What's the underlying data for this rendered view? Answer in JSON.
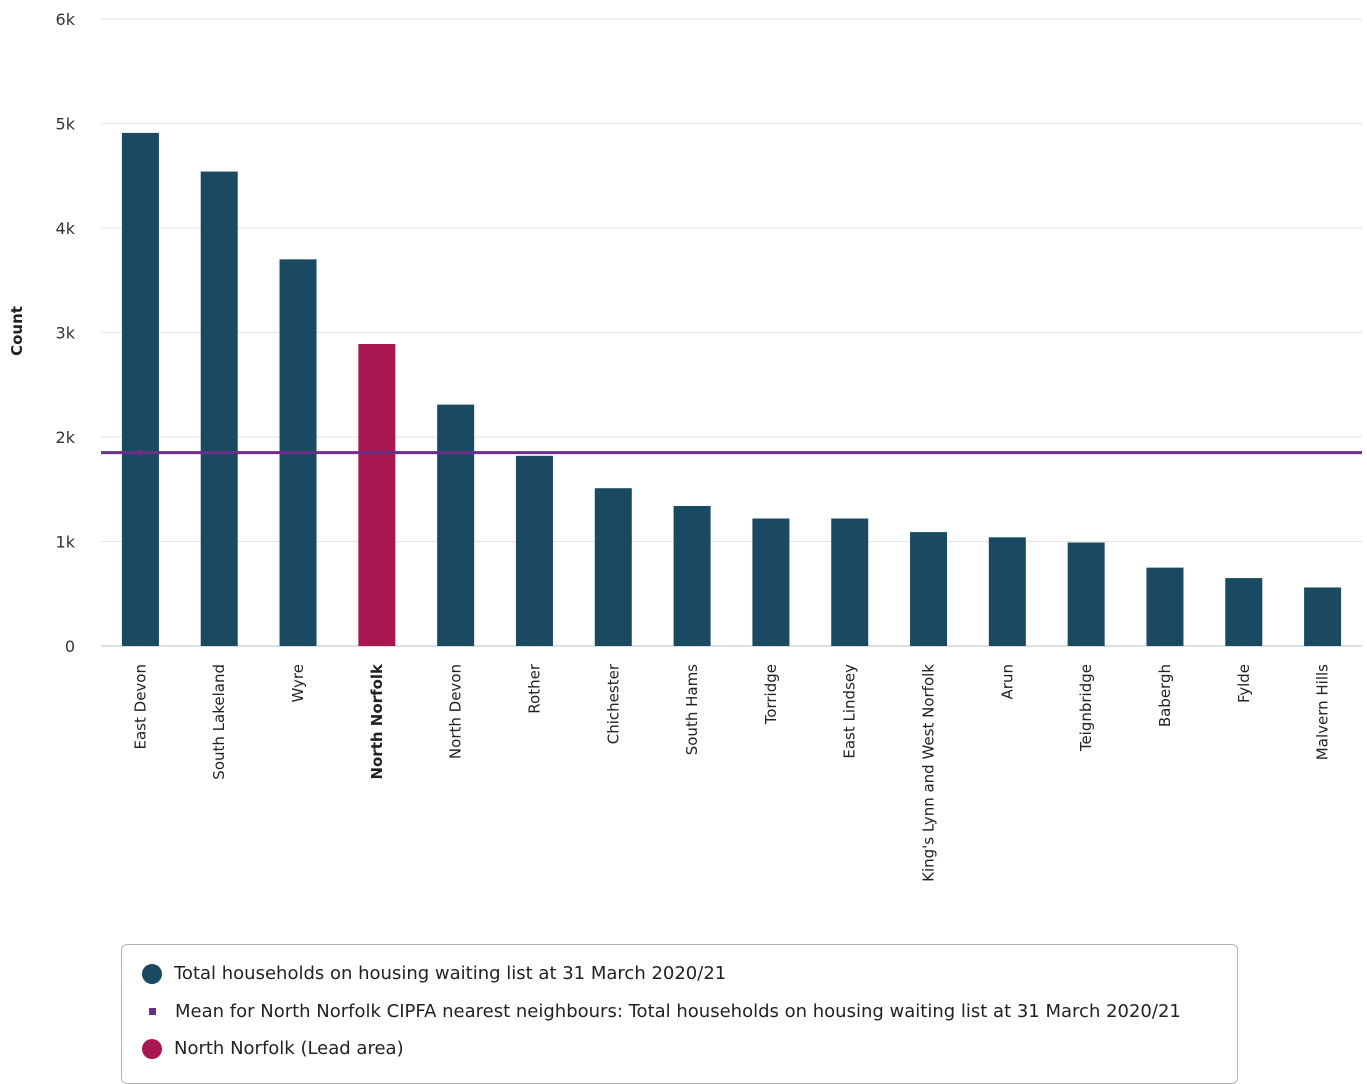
{
  "colors": {
    "bar": "#194a62",
    "lead_bar": "#a8174f",
    "mean_line": "#6c2f87",
    "grid": "#e3e3e3"
  },
  "chart_data": {
    "type": "bar",
    "ylabel": "Count",
    "xlabel": "",
    "ylim": [
      0,
      6000
    ],
    "yticks": [
      0,
      1000,
      2000,
      3000,
      4000,
      5000,
      6000
    ],
    "ytick_labels": [
      "0",
      "1k",
      "2k",
      "3k",
      "4k",
      "5k",
      "6k"
    ],
    "grid": true,
    "lead_category": "North Norfolk",
    "categories": [
      "East Devon",
      "South Lakeland",
      "Wyre",
      "North Norfolk",
      "North Devon",
      "Rother",
      "Chichester",
      "South Hams",
      "Torridge",
      "East Lindsey",
      "King's Lynn and West Norfolk",
      "Arun",
      "Teignbridge",
      "Babergh",
      "Fylde",
      "Malvern Hills"
    ],
    "series": [
      {
        "name": "Total households on housing waiting list at 31 March 2020/21",
        "values": [
          4910,
          4540,
          3700,
          2890,
          2310,
          1820,
          1510,
          1340,
          1220,
          1220,
          1090,
          1040,
          990,
          750,
          650,
          560
        ]
      }
    ],
    "mean": {
      "name": "Mean for North Norfolk CIPFA nearest neighbours: Total households on housing waiting list at 31 March 2020/21",
      "value": 1850
    },
    "legend_position": "bottom",
    "legend": [
      "Total households on housing waiting list at 31 March 2020/21",
      "Mean for North Norfolk CIPFA nearest neighbours: Total households on housing waiting list at 31 March 2020/21",
      "North Norfolk (Lead area)"
    ]
  }
}
